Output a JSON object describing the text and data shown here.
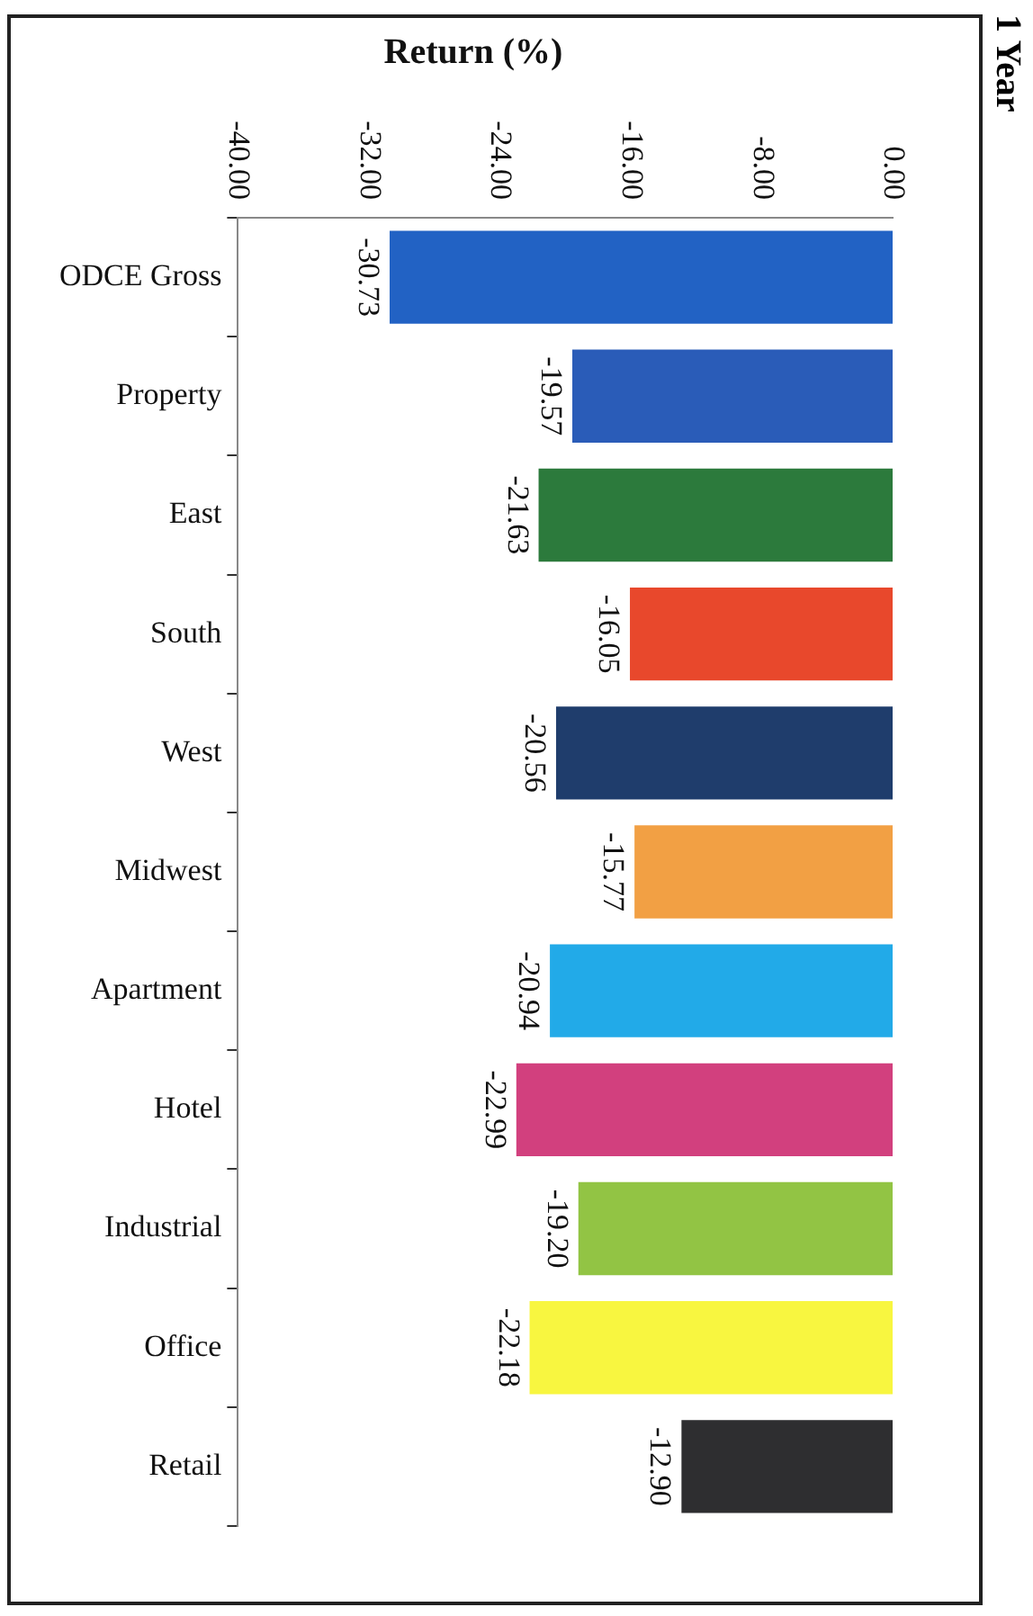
{
  "chart_data": {
    "type": "bar",
    "orientation": "horizontal",
    "title": "Return (%)",
    "subtitle": "1 Year",
    "categories": [
      "ODCE Gross",
      "Property",
      "East",
      "South",
      "West",
      "Midwest",
      "Apartment",
      "Hotel",
      "Industrial",
      "Office",
      "Retail"
    ],
    "values": [
      -30.73,
      -19.57,
      -21.63,
      -16.05,
      -20.56,
      -15.77,
      -20.94,
      -22.99,
      -19.2,
      -22.18,
      -12.9
    ],
    "value_labels": [
      "-30.73",
      "-19.57",
      "-21.63",
      "-16.05",
      "-20.56",
      "-15.77",
      "-20.94",
      "-22.99",
      "-19.20",
      "-22.18",
      "-12.90"
    ],
    "colors": [
      "#2262c4",
      "#2a5cb8",
      "#2c7a3c",
      "#e8482c",
      "#1f3d6c",
      "#f2a044",
      "#22aae8",
      "#d2407e",
      "#92c444",
      "#f8f640",
      "#2e2e30"
    ],
    "xlim": [
      -40,
      0
    ],
    "xticks": [
      {
        "value": -40,
        "label": "-40.00"
      },
      {
        "value": -32,
        "label": "-32.00"
      },
      {
        "value": -24,
        "label": "-24.00"
      },
      {
        "value": -16,
        "label": "-16.00"
      },
      {
        "value": -8,
        "label": "-8.00"
      },
      {
        "value": 0,
        "label": "0.00"
      }
    ],
    "grid": false,
    "legend": false
  }
}
